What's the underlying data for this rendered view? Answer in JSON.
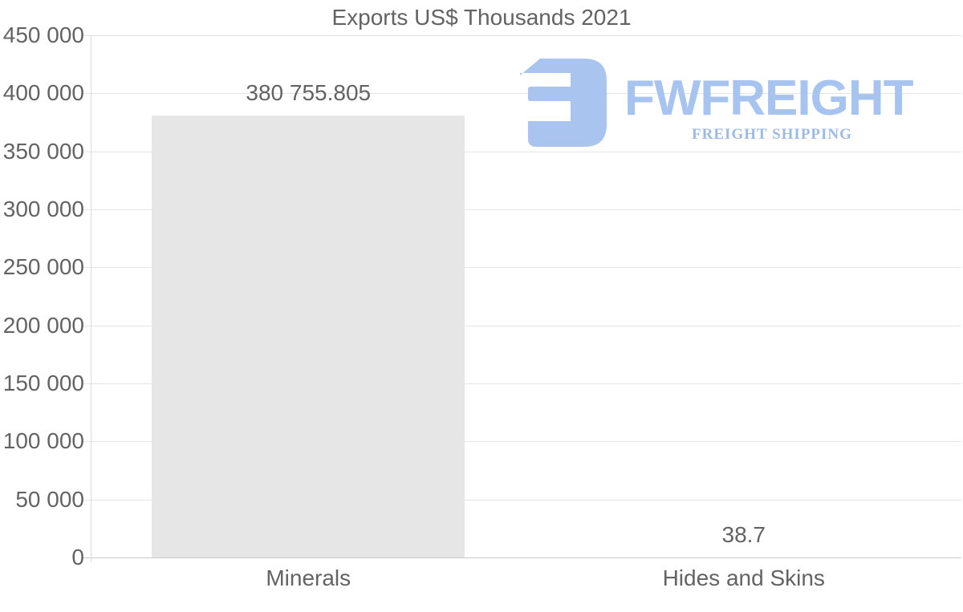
{
  "chart_data": {
    "type": "bar",
    "title": "Exports US$ Thousands 2021",
    "categories": [
      "Minerals",
      "Hides and Skins"
    ],
    "values": [
      380755.805,
      38.7
    ],
    "value_labels": [
      "380 755.805",
      "38.7"
    ],
    "xlabel": "",
    "ylabel": "",
    "ylim": [
      0,
      450000
    ],
    "ytick_step": 50000,
    "ytick_labels": [
      "0",
      "50 000",
      "100 000",
      "150 000",
      "200 000",
      "250 000",
      "300 000",
      "350 000",
      "400 000",
      "450 000"
    ],
    "grid": "horizontal-only",
    "legend": "none",
    "bar_color": "#e6e6e6",
    "text_color": "#636363",
    "gridline_color": "#e4e4e4",
    "axis_line_color": "#c9c9c9",
    "spine_color": "#dadada"
  },
  "watermark": {
    "brand": "FWFREIGHT",
    "tagline": "FREIGHT SHIPPING",
    "logo_icon": "fwfreight-logo-mark",
    "brand_color": "#a7c3ef",
    "tagline_color": "#9db9e6",
    "mark_color": "#a9c4ef"
  }
}
